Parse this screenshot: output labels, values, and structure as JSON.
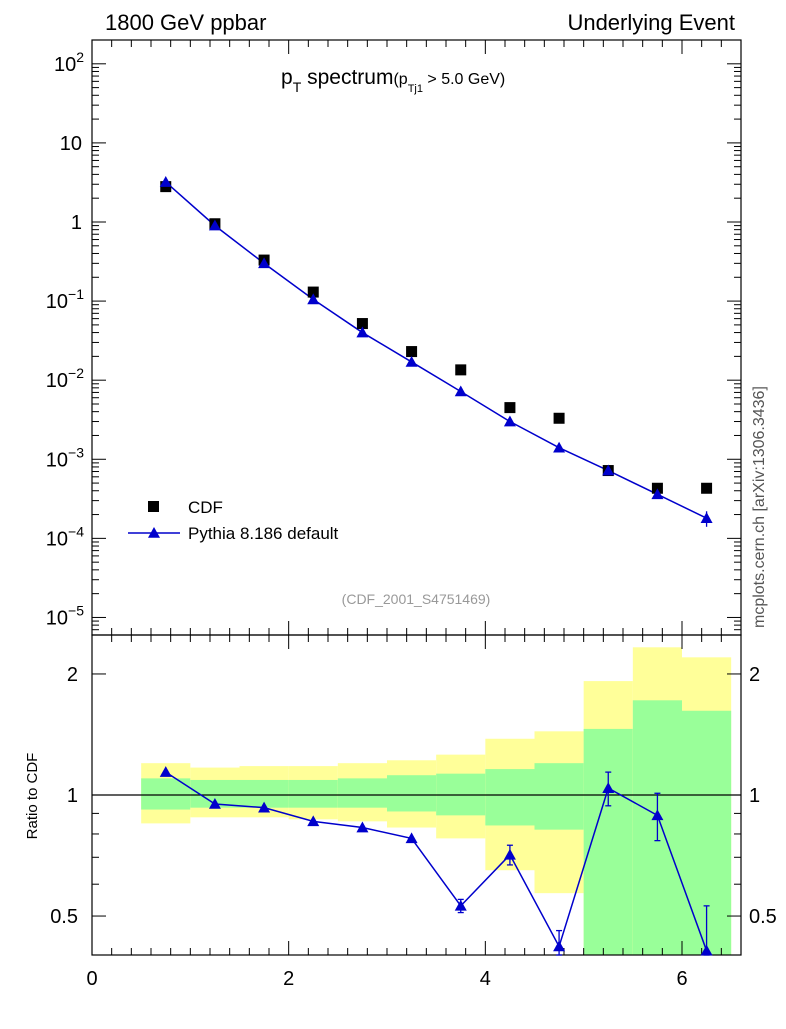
{
  "header": {
    "left": "1800 GeV ppbar",
    "right": "Underlying Event"
  },
  "side_label": "mcplots.cern.ch [arXiv:1306.3436]",
  "ref_label": "(CDF_2001_S4751469)",
  "chart_data": [
    {
      "type": "scatter",
      "title": "p_T spectrum",
      "title_parts": {
        "main": "p",
        "main_sub": "T",
        "word": " spectrum",
        "cut_open": "(p",
        "cut_sub": "Tj1",
        "cut_rest": " > 5.0 GeV)"
      },
      "yscale": "log",
      "ylim": [
        6e-06,
        200
      ],
      "xlim": [
        0,
        6.6
      ],
      "y_tick_labels": [
        {
          "base": "10",
          "exp": "2",
          "value": 100
        },
        {
          "base": "10",
          "exp": "",
          "value": 10
        },
        {
          "base": "1",
          "exp": "",
          "value": 1
        },
        {
          "base": "10",
          "exp": "−1",
          "value": 0.1
        },
        {
          "base": "10",
          "exp": "−2",
          "value": 0.01
        },
        {
          "base": "10",
          "exp": "−3",
          "value": 0.001
        },
        {
          "base": "10",
          "exp": "−4",
          "value": 0.0001
        },
        {
          "base": "10",
          "exp": "−5",
          "value": 1e-05
        }
      ],
      "legend": {
        "placement": "bottom-left",
        "entries": [
          "CDF",
          "Pythia 8.186 default"
        ]
      },
      "series": [
        {
          "name": "CDF",
          "marker": "square",
          "color": "#000000",
          "x": [
            0.75,
            1.25,
            1.75,
            2.25,
            2.75,
            3.25,
            3.75,
            4.25,
            4.75,
            5.25,
            5.75,
            6.25
          ],
          "y": [
            2.8,
            0.95,
            0.33,
            0.13,
            0.052,
            0.023,
            0.0135,
            0.0045,
            0.0033,
            0.00072,
            0.00043,
            0.00043
          ]
        },
        {
          "name": "Pythia 8.186 default",
          "marker": "triangle",
          "color": "#0000cc",
          "x": [
            0.75,
            1.25,
            1.75,
            2.25,
            2.75,
            3.25,
            3.75,
            4.25,
            4.75,
            5.25,
            5.75,
            6.25
          ],
          "y": [
            3.2,
            0.9,
            0.3,
            0.105,
            0.04,
            0.017,
            0.0072,
            0.003,
            0.0014,
            0.00072,
            0.00036,
            0.00018
          ],
          "err_hi": [
            0,
            0,
            0,
            0,
            0,
            0,
            0,
            0,
            0,
            0,
            4e-05,
            4e-05
          ],
          "err_lo": [
            0,
            0,
            0,
            0,
            0,
            0,
            0,
            0,
            0,
            0,
            4e-05,
            4e-05
          ]
        }
      ]
    },
    {
      "type": "line",
      "ylabel": "Ratio to CDF",
      "yscale": "log",
      "ylim": [
        0.4,
        2.5
      ],
      "xlim": [
        0,
        6.6
      ],
      "x_tick_labels": [
        "0",
        "2",
        "4",
        "6"
      ],
      "x_ticks": [
        0,
        2,
        4,
        6
      ],
      "y_tick_labels": [
        "2",
        "1",
        "0.5"
      ],
      "y_ticks": [
        2,
        1,
        0.5
      ],
      "bands": {
        "edges": [
          0.5,
          1.0,
          1.5,
          2.0,
          2.5,
          3.0,
          3.5,
          4.0,
          4.5,
          5.0,
          5.5,
          6.0,
          6.5
        ],
        "yellow_lo": [
          0.85,
          0.88,
          0.88,
          0.87,
          0.86,
          0.83,
          0.78,
          0.65,
          0.57,
          0.3,
          0.3,
          0.3
        ],
        "yellow_hi": [
          1.2,
          1.17,
          1.18,
          1.18,
          1.2,
          1.22,
          1.26,
          1.38,
          1.44,
          1.92,
          2.33,
          2.2
        ],
        "green_lo": [
          0.92,
          0.93,
          0.93,
          0.93,
          0.93,
          0.91,
          0.89,
          0.84,
          0.82,
          0.3,
          0.36,
          0.3
        ],
        "green_hi": [
          1.1,
          1.09,
          1.09,
          1.09,
          1.1,
          1.12,
          1.13,
          1.16,
          1.2,
          1.46,
          1.72,
          1.62
        ]
      },
      "series": [
        {
          "name": "Pythia 8.186 default",
          "color": "#0000cc",
          "x": [
            0.75,
            1.25,
            1.75,
            2.25,
            2.75,
            3.25,
            3.75,
            4.25,
            4.75,
            5.25,
            5.75,
            6.25
          ],
          "y": [
            1.14,
            0.95,
            0.93,
            0.86,
            0.83,
            0.78,
            0.53,
            0.71,
            0.42,
            1.04,
            0.89,
            0.41
          ],
          "err": [
            0,
            0,
            0,
            0,
            0,
            0,
            0.02,
            0.04,
            0.04,
            0.1,
            0.12,
            0.12
          ]
        }
      ]
    }
  ],
  "colors": {
    "data": "#000000",
    "mc": "#0000cc",
    "band_outer": "#ffff99",
    "band_inner": "#99ff99",
    "ref_text": "#999999"
  }
}
